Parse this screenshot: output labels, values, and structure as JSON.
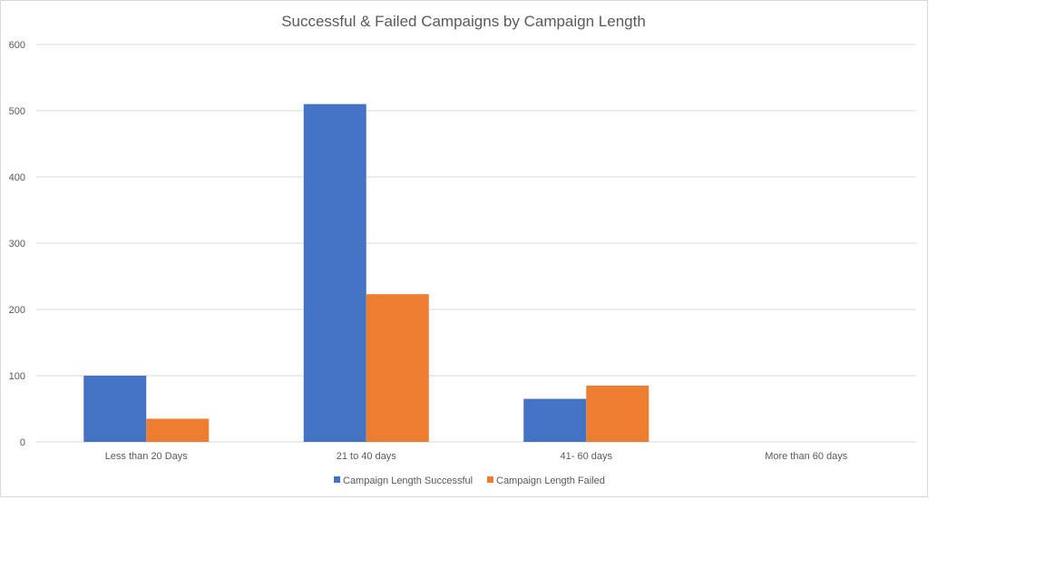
{
  "chart_data": {
    "type": "bar",
    "title": "Successful & Failed Campaigns by Campaign Length",
    "xlabel": "",
    "ylabel": "",
    "categories": [
      "Less than 20 Days",
      "21 to 40 days",
      "41- 60 days",
      "More than 60 days"
    ],
    "series": [
      {
        "name": "Campaign Length Successful",
        "values": [
          100,
          510,
          65,
          0
        ],
        "color": "#4472c4"
      },
      {
        "name": "Campaign Length Failed",
        "values": [
          35,
          223,
          85,
          0
        ],
        "color": "#ed7d31"
      }
    ],
    "ylim": [
      0,
      600
    ],
    "yticks": [
      0,
      100,
      200,
      300,
      400,
      500,
      600
    ],
    "grid": true,
    "legend_position": "bottom"
  }
}
